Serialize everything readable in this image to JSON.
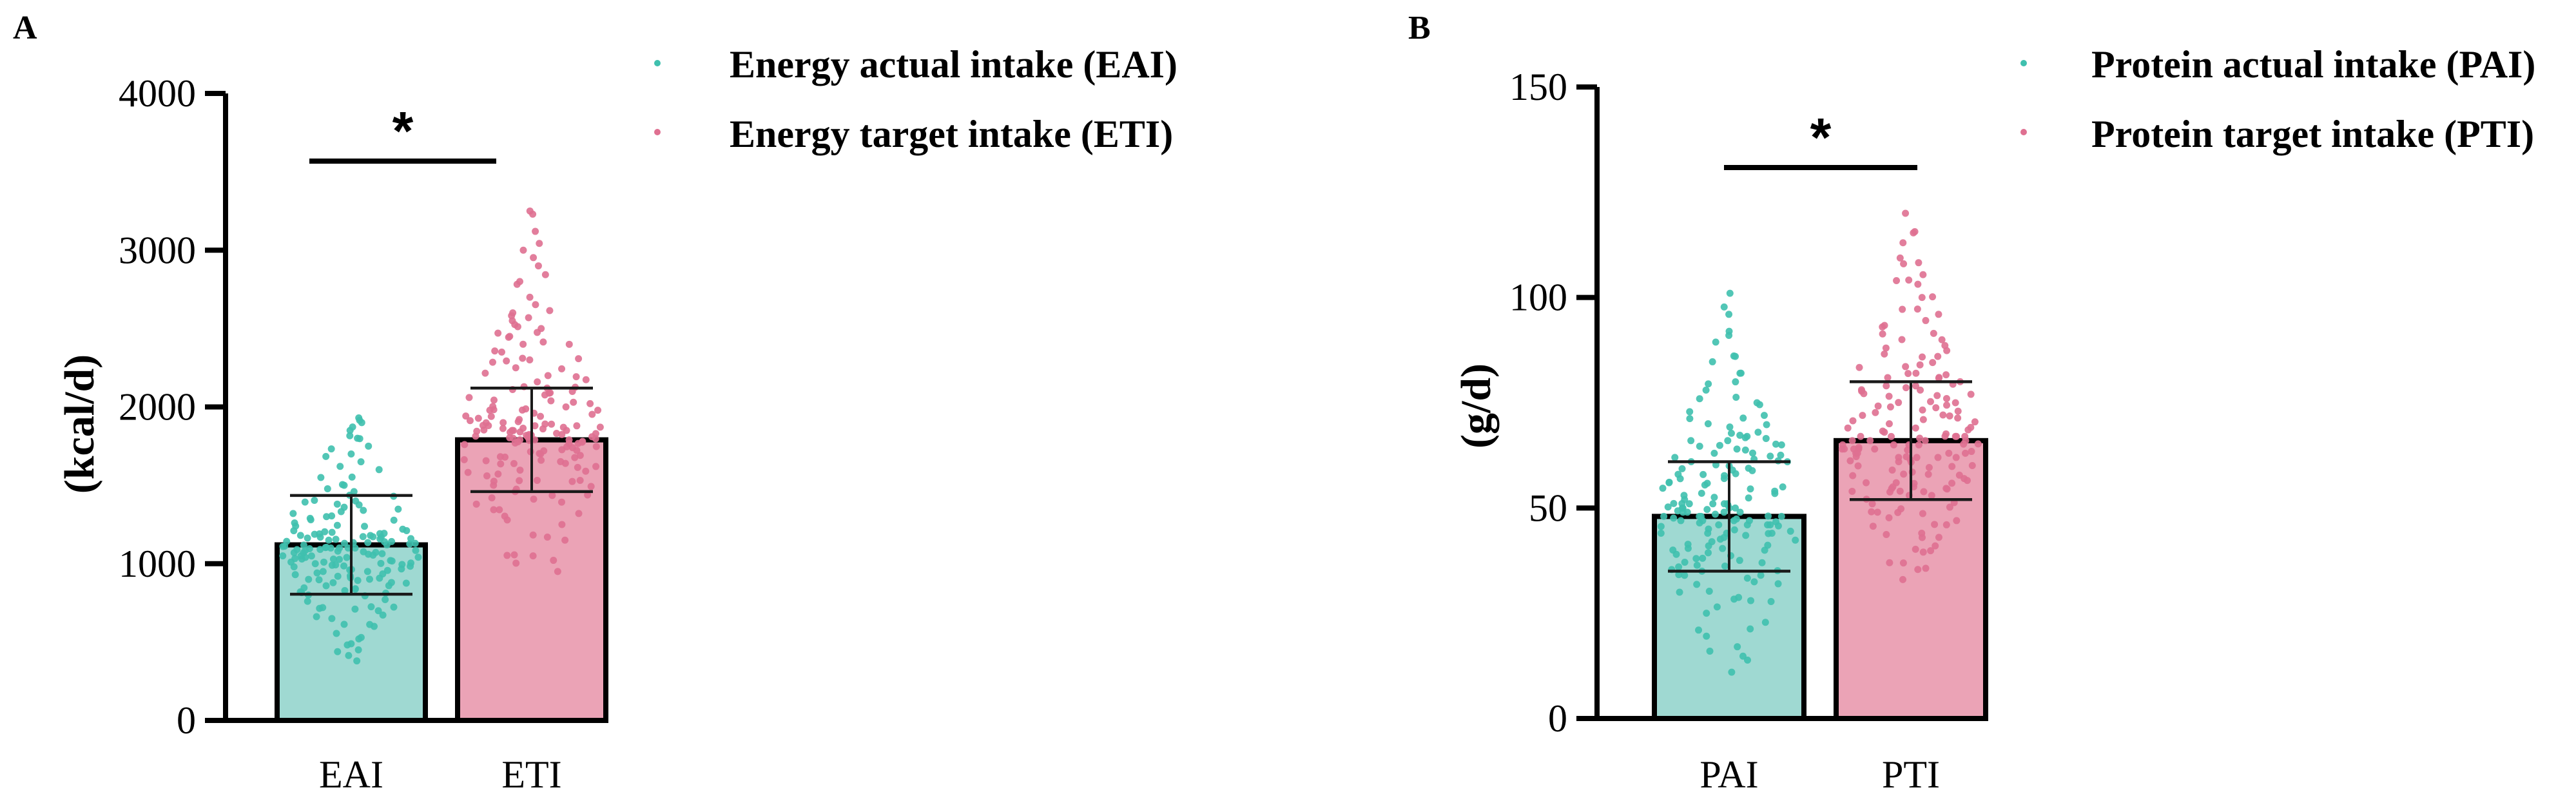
{
  "chart_data": [
    {
      "panel": "A",
      "type": "bar",
      "categories": [
        "EAI",
        "ETI"
      ],
      "ylabel": "(kcal/d)",
      "ylim": [
        0,
        4000
      ],
      "yticks": [
        0,
        1000,
        2000,
        3000,
        4000
      ],
      "grid": false,
      "legend_position": "top-right",
      "significance": "*",
      "series": [
        {
          "name": "Energy actual intake (EAI)",
          "category": "EAI",
          "mean": 1120,
          "sd": 315,
          "fill": "#9fd9d2",
          "dot": "#3fc0ae",
          "min": 380,
          "max": 1930,
          "points": [
            380,
            450,
            520,
            600,
            650,
            700,
            720,
            760,
            800,
            820,
            840,
            860,
            880,
            900,
            910,
            930,
            950,
            960,
            980,
            990,
            1000,
            1010,
            1020,
            1030,
            1040,
            1050,
            1060,
            1070,
            1080,
            1090,
            1100,
            1100,
            1110,
            1120,
            1130,
            1140,
            1150,
            1160,
            1170,
            1180,
            1190,
            1200,
            1210,
            1220,
            1240,
            1260,
            1280,
            1300,
            1320,
            1340,
            1360,
            1380,
            1400,
            1430,
            1460,
            1500,
            1550,
            1600,
            1650,
            1700,
            1750,
            1800,
            1850,
            1900,
            1930
          ]
        },
        {
          "name": "Energy target intake (ETI)",
          "category": "ETI",
          "mean": 1790,
          "sd": 330,
          "fill": "#eba3b6",
          "dot": "#df7091",
          "min": 950,
          "max": 3250,
          "points": [
            950,
            1050,
            1150,
            1250,
            1320,
            1380,
            1420,
            1460,
            1500,
            1530,
            1560,
            1590,
            1620,
            1640,
            1660,
            1680,
            1700,
            1720,
            1740,
            1760,
            1770,
            1780,
            1790,
            1800,
            1810,
            1820,
            1830,
            1840,
            1850,
            1860,
            1870,
            1880,
            1890,
            1900,
            1920,
            1940,
            1960,
            1980,
            2000,
            2030,
            2060,
            2090,
            2120,
            2160,
            2200,
            2250,
            2300,
            2350,
            2400,
            2450,
            2500,
            2550,
            2600,
            2700,
            2800,
            2900,
            3000,
            3120,
            3250
          ]
        }
      ]
    },
    {
      "panel": "B",
      "type": "bar",
      "categories": [
        "PAI",
        "PTI"
      ],
      "ylabel": "(g/d)",
      "ylim": [
        0,
        150
      ],
      "yticks": [
        0,
        50,
        100,
        150
      ],
      "grid": false,
      "legend_position": "top-right",
      "significance": "*",
      "series": [
        {
          "name": "Protein actual intake (PAI)",
          "category": "PAI",
          "mean": 48,
          "sd": 13,
          "fill": "#9fd9d2",
          "dot": "#3fc0ae",
          "min": 11,
          "max": 101,
          "points": [
            11,
            16,
            21,
            25,
            28,
            30,
            32,
            34,
            35,
            36,
            37,
            38,
            39,
            40,
            41,
            42,
            43,
            44,
            44,
            45,
            46,
            46,
            47,
            47,
            48,
            48,
            49,
            49,
            50,
            50,
            51,
            51,
            52,
            53,
            54,
            55,
            56,
            57,
            58,
            59,
            60,
            61,
            62,
            63,
            64,
            65,
            66,
            67,
            68,
            70,
            72,
            75,
            78,
            82,
            86,
            91,
            96,
            101
          ]
        },
        {
          "name": "Protein target intake (PTI)",
          "category": "PTI",
          "mean": 66,
          "sd": 14,
          "fill": "#eba3b6",
          "dot": "#df7091",
          "min": 33,
          "max": 120,
          "points": [
            33,
            37,
            41,
            44,
            47,
            49,
            51,
            53,
            54,
            55,
            56,
            57,
            58,
            59,
            60,
            61,
            62,
            62,
            63,
            63,
            64,
            64,
            65,
            65,
            66,
            66,
            67,
            67,
            68,
            69,
            70,
            71,
            72,
            73,
            74,
            75,
            76,
            77,
            78,
            79,
            80,
            81,
            82,
            84,
            86,
            88,
            90,
            93,
            96,
            100,
            104,
            108,
            113,
            120
          ]
        }
      ]
    }
  ]
}
